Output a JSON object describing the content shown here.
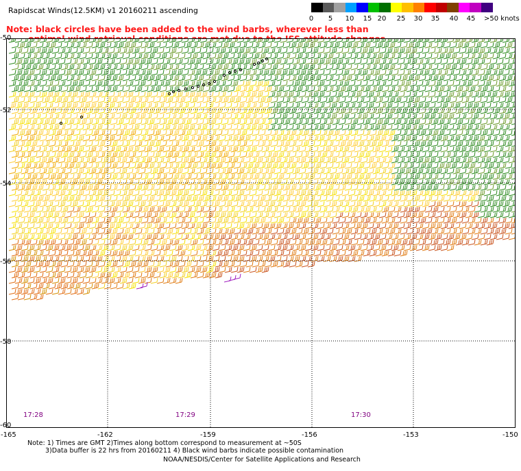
{
  "header": {
    "title": "Rapidscat Winds(12.5KM)  v1  20160211  ascending",
    "note_line1": "Note: black circles have been added to the wind barbs, wherever less than",
    "note_line2": "optimal wind retrieval conditions are met due to the ISS attitude changes."
  },
  "scale": {
    "labels": [
      "0",
      "5",
      "10",
      "15",
      "20",
      "25",
      "30",
      "35",
      "40",
      "45",
      ">50 knots"
    ],
    "colors": [
      "#000000",
      "#5a5a5a",
      "#a0a0a0",
      "#00a0ff",
      "#0000ff",
      "#00c000",
      "#007000",
      "#ffff00",
      "#ffc000",
      "#ff8000",
      "#ff0000",
      "#c00000",
      "#804000",
      "#ff00ff",
      "#c000c0",
      "#400080"
    ]
  },
  "map": {
    "lat_labels": [
      "-50",
      "-52",
      "-54",
      "-56",
      "-58",
      "-60"
    ],
    "lon_labels": [
      "-165",
      "-162",
      "-159",
      "-156",
      "-153",
      "-150"
    ],
    "time_labels": [
      "17:28",
      "17:29",
      "17:30"
    ]
  },
  "footer": {
    "line1": "Note: 1) Times are GMT 2)Times along bottom correspond to measurement at ~50S",
    "line2": "3)Data buffer is 22 hrs from 20160211 4) Black wind barbs indicate possible contamination",
    "line3": "NOAA/NESDIS/Center for Satellite Applications and Research"
  }
}
